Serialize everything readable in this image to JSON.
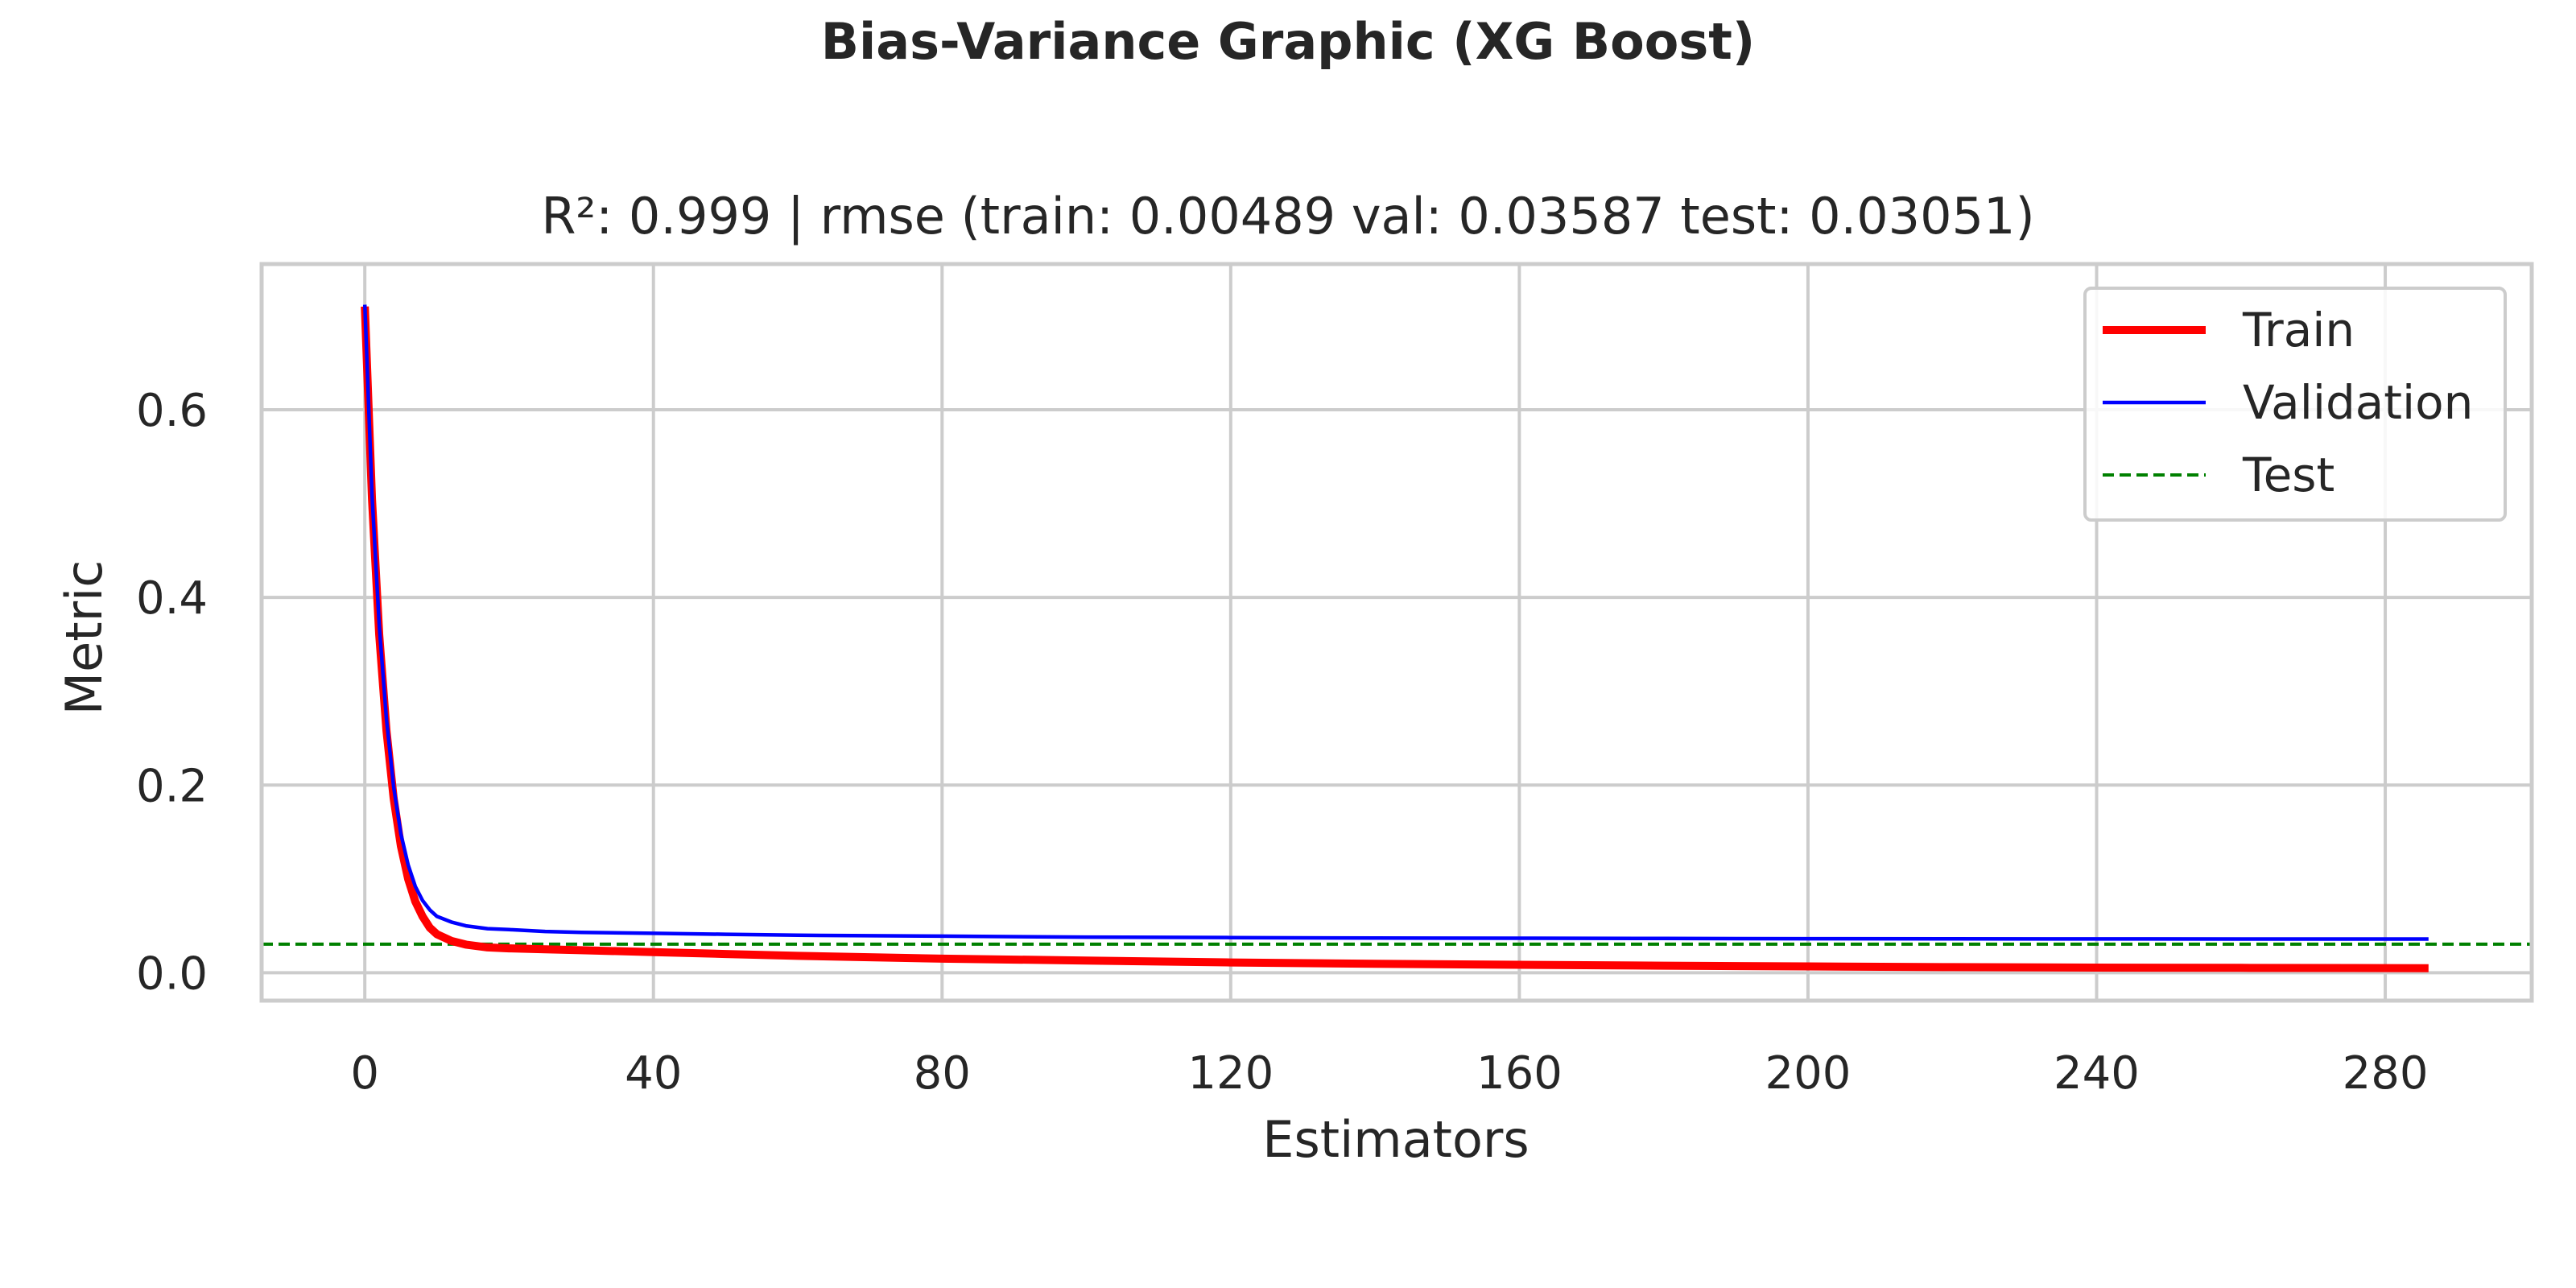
{
  "figure": {
    "suptitle": "Bias-Variance Graphic (XG Boost)",
    "colors": {
      "train": "#ff0000",
      "validation": "#0000ff",
      "test": "#008000",
      "grid": "#cccccc",
      "background": "#ffffff"
    }
  },
  "chart_data": {
    "type": "line",
    "title": "R²: 0.999 | rmse (train: 0.00489  val: 0.03587  test: 0.03051)",
    "xlabel": "Estimators",
    "ylabel": "Metric",
    "xlim": [
      -14.3,
      300.3
    ],
    "ylim": [
      -0.0297,
      0.7553
    ],
    "xticks": [
      0,
      40,
      80,
      120,
      160,
      200,
      240,
      280
    ],
    "xtick_labels": [
      "0",
      "40",
      "80",
      "120",
      "160",
      "200",
      "240",
      "280"
    ],
    "yticks": [
      0.0,
      0.2,
      0.4,
      0.6
    ],
    "ytick_labels": [
      "0.0",
      "0.2",
      "0.4",
      "0.6"
    ],
    "grid": true,
    "legend": {
      "placement": "upper right",
      "entries": [
        "Train",
        "Validation",
        "Test"
      ]
    },
    "series": [
      {
        "name": "Train",
        "style": "solid-thick",
        "x": [
          0,
          1,
          2,
          3,
          4,
          5,
          6,
          7,
          8,
          9,
          10,
          12,
          14,
          17,
          20,
          25,
          30,
          40,
          50,
          60,
          80,
          100,
          120,
          140,
          160,
          180,
          200,
          220,
          240,
          260,
          286
        ],
        "y": [
          0.71,
          0.505,
          0.36,
          0.258,
          0.186,
          0.135,
          0.1,
          0.076,
          0.06,
          0.048,
          0.041,
          0.034,
          0.03,
          0.027,
          0.026,
          0.025,
          0.024,
          0.022,
          0.02,
          0.018,
          0.015,
          0.013,
          0.011,
          0.0095,
          0.0085,
          0.0075,
          0.0068,
          0.006,
          0.0055,
          0.0052,
          0.0049
        ]
      },
      {
        "name": "Validation",
        "style": "solid-thin",
        "x": [
          0,
          1,
          2,
          3,
          4,
          5,
          6,
          7,
          8,
          9,
          10,
          12,
          14,
          17,
          20,
          25,
          30,
          40,
          50,
          60,
          80,
          100,
          120,
          140,
          160,
          180,
          200,
          220,
          240,
          260,
          286
        ],
        "y": [
          0.712,
          0.51,
          0.37,
          0.27,
          0.198,
          0.148,
          0.115,
          0.092,
          0.077,
          0.067,
          0.06,
          0.054,
          0.05,
          0.047,
          0.046,
          0.044,
          0.043,
          0.042,
          0.041,
          0.04,
          0.039,
          0.038,
          0.0375,
          0.037,
          0.0368,
          0.0365,
          0.0363,
          0.0361,
          0.036,
          0.0359,
          0.0359
        ]
      },
      {
        "name": "Test",
        "style": "dashed",
        "constant": 0.03051
      }
    ]
  }
}
